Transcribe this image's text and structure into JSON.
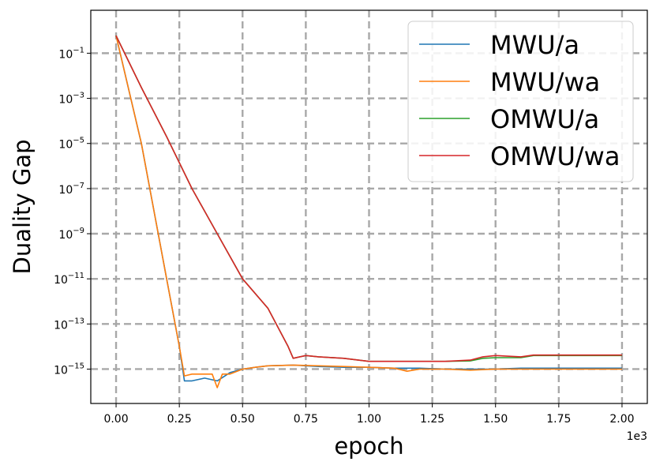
{
  "chart_data": {
    "type": "line",
    "xlabel": "epoch",
    "ylabel": "Duality Gap",
    "x_offset_label": "1e3",
    "yscale": "log",
    "xlim": [
      -0.1,
      2.1
    ],
    "ylim": [
      3e-17,
      8
    ],
    "grid": true,
    "legend_position": "top-right",
    "x_ticks": [
      0.0,
      0.25,
      0.5,
      0.75,
      1.0,
      1.25,
      1.5,
      1.75,
      2.0
    ],
    "x_tick_labels": [
      "0.00",
      "0.25",
      "0.50",
      "0.75",
      "1.00",
      "1.25",
      "1.50",
      "1.75",
      "2.00"
    ],
    "y_ticks": [
      {
        "exp": -1,
        "base": "10",
        "sup": "−1"
      },
      {
        "exp": -3,
        "base": "10",
        "sup": "−3"
      },
      {
        "exp": -5,
        "base": "10",
        "sup": "−5"
      },
      {
        "exp": -7,
        "base": "10",
        "sup": "−7"
      },
      {
        "exp": -9,
        "base": "10",
        "sup": "−9"
      },
      {
        "exp": -11,
        "base": "10",
        "sup": "−11"
      },
      {
        "exp": -13,
        "base": "10",
        "sup": "−13"
      },
      {
        "exp": -15,
        "base": "10",
        "sup": "−15"
      }
    ],
    "series": [
      {
        "name": "MWU/a",
        "color": "#1f77b4",
        "x": [
          0.0,
          0.1,
          0.2,
          0.25,
          0.27,
          0.3,
          0.35,
          0.4,
          0.45,
          0.5,
          0.55,
          0.6,
          0.7,
          0.8,
          0.9,
          1.0,
          1.1,
          1.2,
          1.3,
          1.4,
          1.5,
          1.6,
          1.7,
          1.8,
          1.9,
          2.0
        ],
        "y": [
          0.6,
          1e-05,
          1e-11,
          1e-14,
          3e-16,
          3e-16,
          4e-16,
          3e-16,
          7e-16,
          1e-15,
          1.2e-15,
          1.4e-15,
          1.5e-15,
          1.3e-15,
          1.2e-15,
          1.2e-15,
          1.1e-15,
          1.1e-15,
          1e-15,
          1e-15,
          1e-15,
          1.1e-15,
          1.1e-15,
          1.1e-15,
          1.1e-15,
          1.1e-15
        ]
      },
      {
        "name": "MWU/wa",
        "color": "#ff7f0e",
        "x": [
          0.0,
          0.1,
          0.2,
          0.25,
          0.27,
          0.3,
          0.35,
          0.38,
          0.4,
          0.42,
          0.45,
          0.5,
          0.55,
          0.6,
          0.7,
          0.8,
          0.9,
          1.0,
          1.1,
          1.15,
          1.2,
          1.3,
          1.4,
          1.5,
          1.6,
          1.7,
          1.8,
          1.9,
          2.0
        ],
        "y": [
          0.6,
          1e-05,
          1e-11,
          1e-14,
          5e-16,
          6e-16,
          6e-16,
          6e-16,
          1.5e-16,
          6e-16,
          6e-16,
          1e-15,
          1.2e-15,
          1.4e-15,
          1.5e-15,
          1.4e-15,
          1.3e-15,
          1.2e-15,
          1.1e-15,
          8e-16,
          1e-15,
          1e-15,
          9e-16,
          1e-15,
          1e-15,
          1e-15,
          1e-15,
          1e-15,
          1e-15
        ]
      },
      {
        "name": "OMWU/a",
        "color": "#2ca02c",
        "x": [
          0.0,
          0.1,
          0.2,
          0.3,
          0.4,
          0.5,
          0.6,
          0.68,
          0.7,
          0.75,
          0.8,
          0.9,
          1.0,
          1.1,
          1.2,
          1.3,
          1.4,
          1.45,
          1.5,
          1.6,
          1.65,
          1.7,
          1.8,
          1.9,
          2.0
        ],
        "y": [
          0.6,
          0.003,
          2e-05,
          1e-07,
          1e-09,
          1e-11,
          5e-13,
          1e-14,
          3e-15,
          4e-15,
          3.5e-15,
          3e-15,
          2.2e-15,
          2.2e-15,
          2.2e-15,
          2.2e-15,
          2.3e-15,
          3e-15,
          3.2e-15,
          3.2e-15,
          4e-15,
          4e-15,
          4e-15,
          4e-15,
          4e-15
        ]
      },
      {
        "name": "OMWU/wa",
        "color": "#d62728",
        "x": [
          0.0,
          0.1,
          0.2,
          0.3,
          0.4,
          0.5,
          0.6,
          0.68,
          0.7,
          0.75,
          0.8,
          0.9,
          1.0,
          1.1,
          1.2,
          1.3,
          1.4,
          1.45,
          1.5,
          1.6,
          1.65,
          1.7,
          1.8,
          1.9,
          2.0
        ],
        "y": [
          0.6,
          0.003,
          2e-05,
          1e-07,
          1e-09,
          1e-11,
          5e-13,
          1e-14,
          3e-15,
          4e-15,
          3.5e-15,
          3e-15,
          2.2e-15,
          2.2e-15,
          2.2e-15,
          2.2e-15,
          2.5e-15,
          3.5e-15,
          4e-15,
          3.5e-15,
          4.2e-15,
          4.2e-15,
          4.2e-15,
          4.2e-15,
          4.2e-15
        ]
      }
    ]
  }
}
